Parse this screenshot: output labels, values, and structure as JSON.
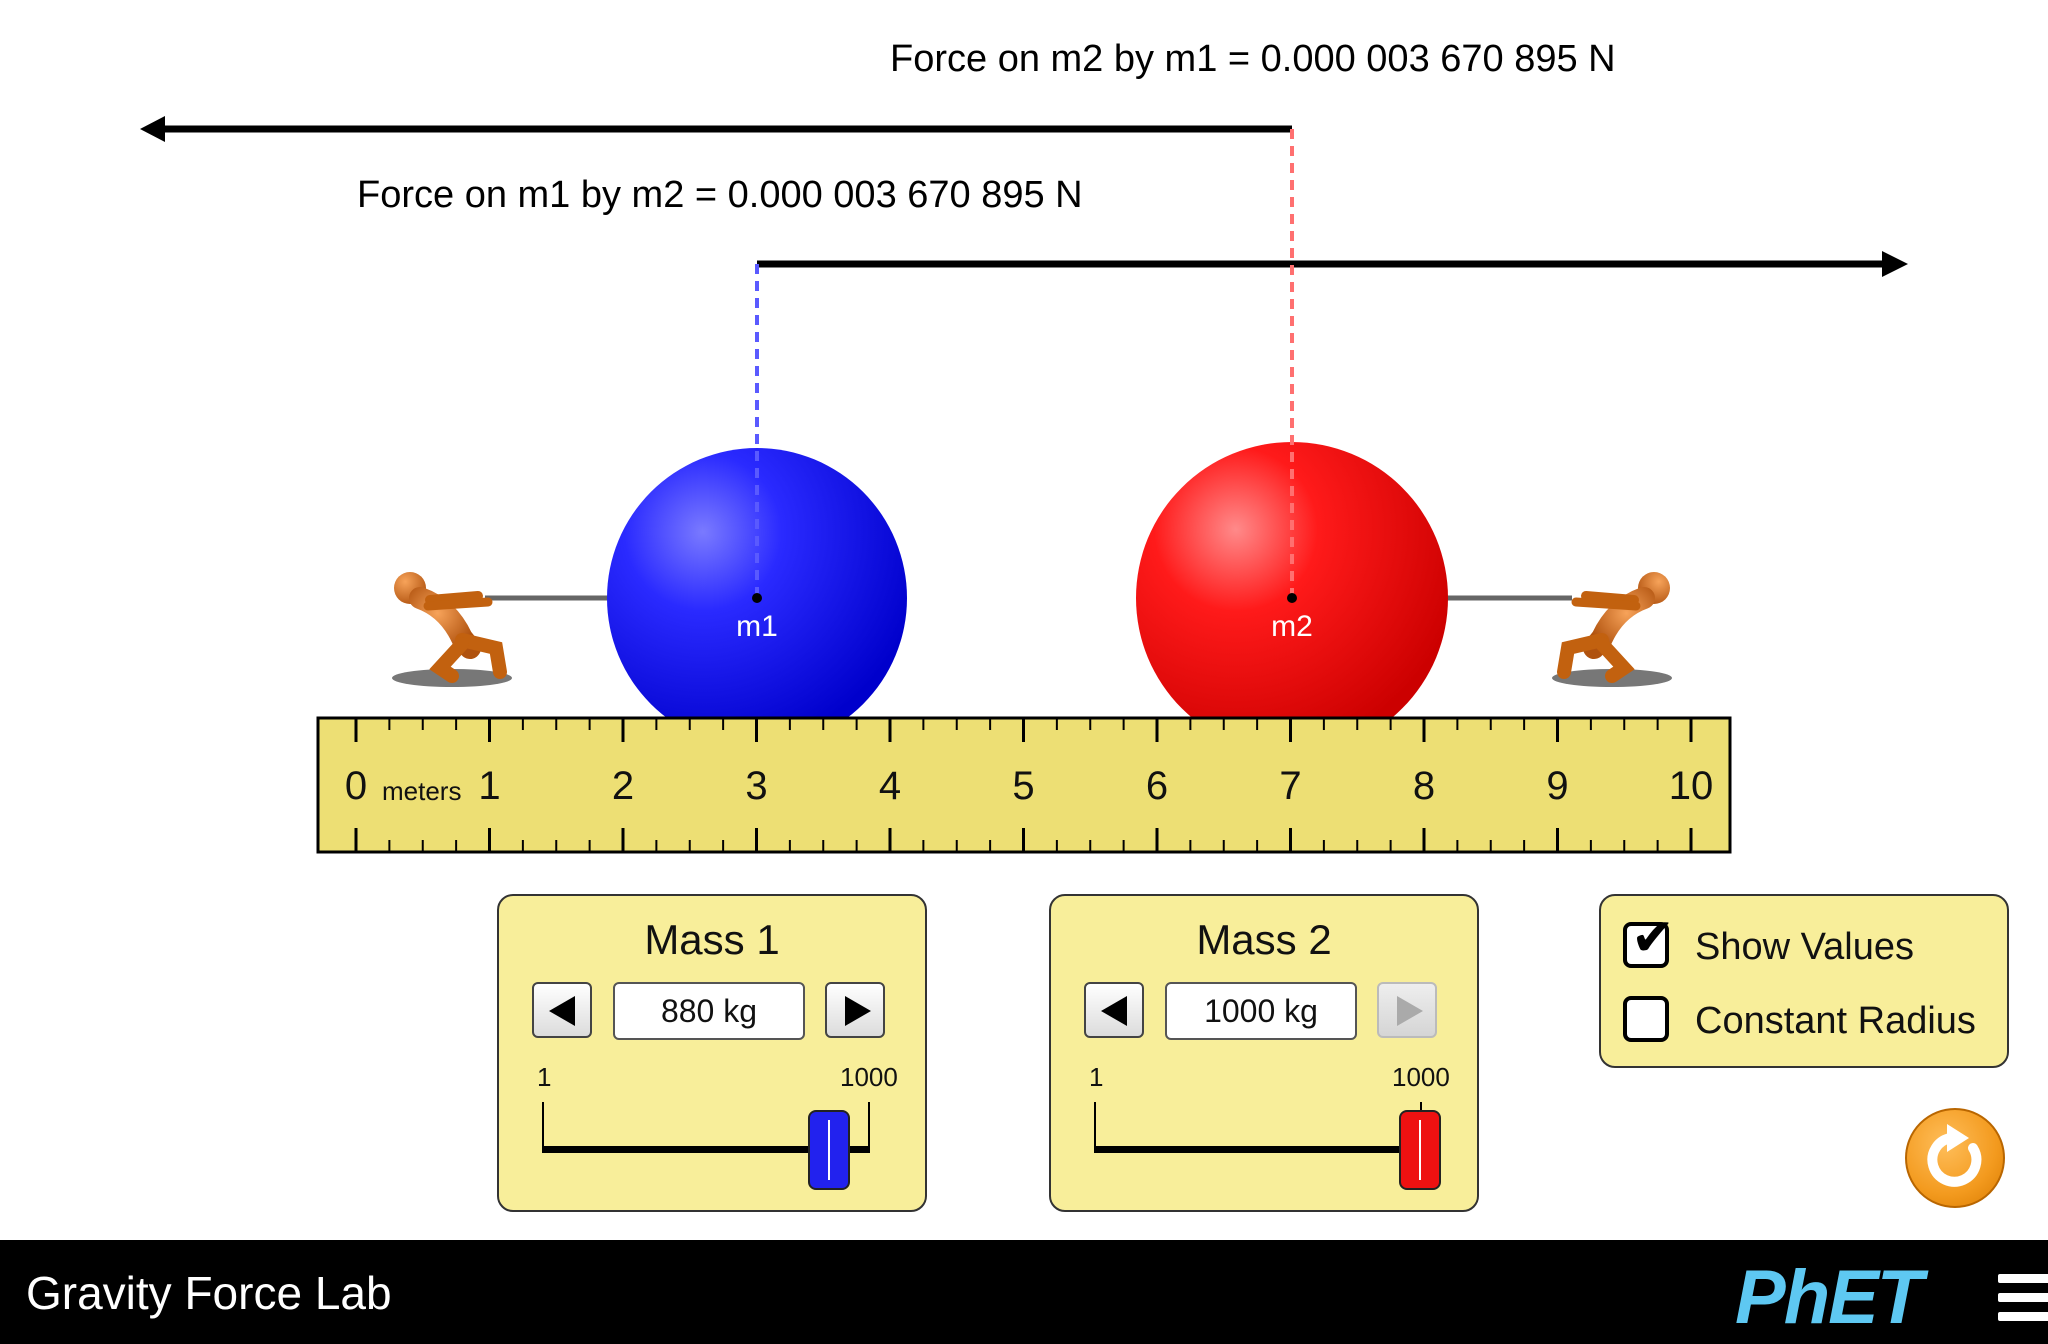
{
  "forces": {
    "force_on_m2_label": "Force on m2 by m1 = 0.000 003 670 895 N",
    "force_on_m1_label": "Force on m1 by m2 = 0.000 003 670 895 N"
  },
  "masses": {
    "m1_label": "m1",
    "m2_label": "m2",
    "m1_color": "#1a1aff",
    "m2_color": "#ff0000",
    "m1_position_m": 3,
    "m2_position_m": 7
  },
  "ruler": {
    "unit_label": "meters",
    "numbers": [
      "0",
      "1",
      "2",
      "3",
      "4",
      "5",
      "6",
      "7",
      "8",
      "9",
      "10"
    ],
    "background": "#eddf74"
  },
  "mass1_panel": {
    "title": "Mass 1",
    "value": "880 kg",
    "min_label": "1",
    "max_label": "1000",
    "slider_value": 880,
    "thumb_color": "#2222ee"
  },
  "mass2_panel": {
    "title": "Mass 2",
    "value": "1000 kg",
    "min_label": "1",
    "max_label": "1000",
    "slider_value": 1000,
    "thumb_color": "#ee1111"
  },
  "options": {
    "show_values_label": "Show Values",
    "show_values_checked": true,
    "constant_radius_label": "Constant Radius",
    "constant_radius_checked": false
  },
  "navbar": {
    "title": "Gravity Force Lab",
    "logo_text": "PhET"
  }
}
